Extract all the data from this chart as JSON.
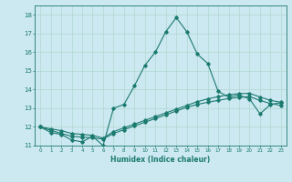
{
  "title": "",
  "xlabel": "Humidex (Indice chaleur)",
  "ylabel": "",
  "bg_color": "#cce8f0",
  "line_color": "#1a7a6e",
  "grid_color": "#b0d8d0",
  "xlim": [
    -0.5,
    23.5
  ],
  "ylim": [
    11,
    18.5
  ],
  "xticks": [
    0,
    1,
    2,
    3,
    4,
    5,
    6,
    7,
    8,
    9,
    10,
    11,
    12,
    13,
    14,
    15,
    16,
    17,
    18,
    19,
    20,
    21,
    22,
    23
  ],
  "yticks": [
    11,
    12,
    13,
    14,
    15,
    16,
    17,
    18
  ],
  "series1_x": [
    0,
    1,
    2,
    3,
    4,
    5,
    6,
    7,
    8,
    9,
    10,
    11,
    12,
    13,
    14,
    15,
    16,
    17,
    18,
    19,
    20,
    21,
    22,
    23
  ],
  "series1_y": [
    12.0,
    11.7,
    11.6,
    11.3,
    11.2,
    11.5,
    11.0,
    13.0,
    13.2,
    14.2,
    15.3,
    16.0,
    17.1,
    17.85,
    17.1,
    15.9,
    15.4,
    13.9,
    13.6,
    13.7,
    13.5,
    12.7,
    13.2,
    13.3
  ],
  "series2_x": [
    0,
    1,
    2,
    3,
    4,
    5,
    6,
    7,
    8,
    9,
    10,
    11,
    12,
    13,
    14,
    15,
    16,
    17,
    18,
    19,
    20,
    21,
    22,
    23
  ],
  "series2_y": [
    12.0,
    11.9,
    11.8,
    11.65,
    11.6,
    11.55,
    11.4,
    11.75,
    11.95,
    12.15,
    12.35,
    12.55,
    12.75,
    12.95,
    13.15,
    13.35,
    13.5,
    13.62,
    13.72,
    13.78,
    13.8,
    13.6,
    13.42,
    13.32
  ],
  "series3_x": [
    0,
    1,
    2,
    3,
    4,
    5,
    6,
    7,
    8,
    9,
    10,
    11,
    12,
    13,
    14,
    15,
    16,
    17,
    18,
    19,
    20,
    21,
    22,
    23
  ],
  "series3_y": [
    12.0,
    11.82,
    11.65,
    11.5,
    11.45,
    11.42,
    11.35,
    11.65,
    11.85,
    12.05,
    12.25,
    12.45,
    12.65,
    12.85,
    13.05,
    13.2,
    13.32,
    13.42,
    13.52,
    13.58,
    13.62,
    13.42,
    13.25,
    13.15
  ]
}
